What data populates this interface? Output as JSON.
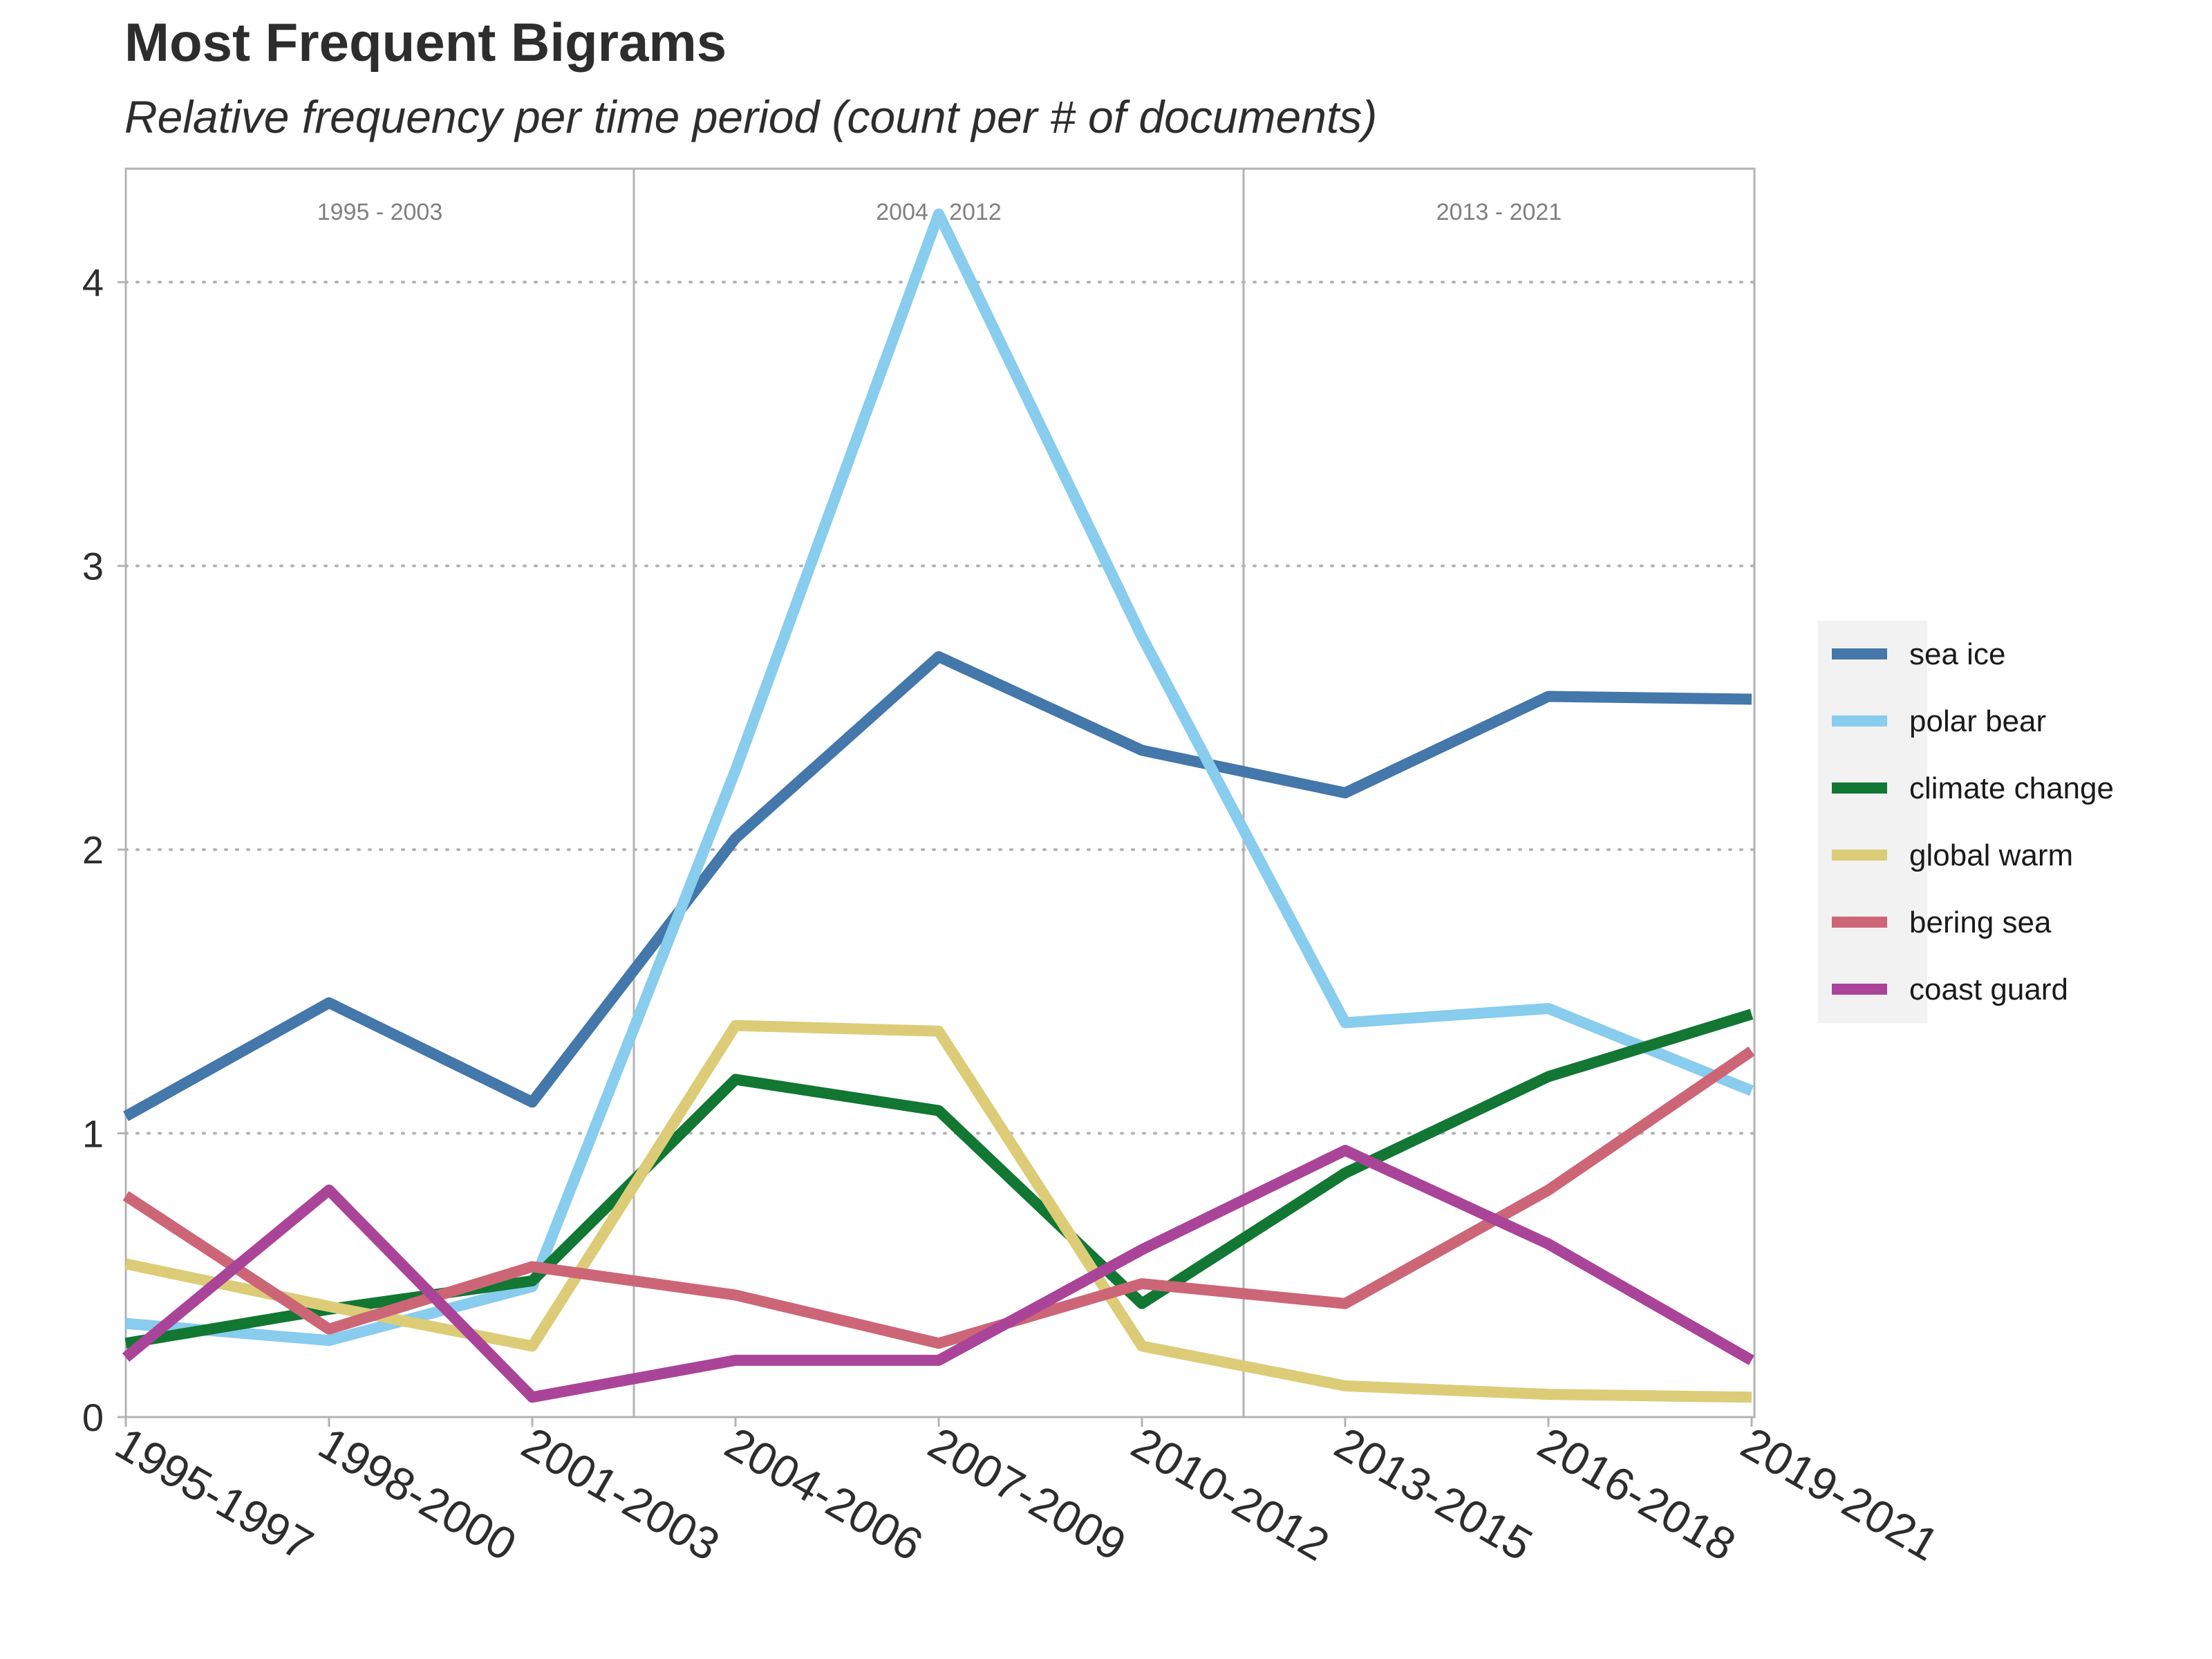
{
  "chart_data": {
    "type": "line",
    "title": "Most Frequent Bigrams",
    "subtitle": "Relative frequency per time period (count per # of documents)",
    "xlabel": "",
    "ylabel": "",
    "categories": [
      "1995-1997",
      "1998-2000",
      "2001-2003",
      "2004-2006",
      "2007-2009",
      "2010-2012",
      "2013-2015",
      "2016-2018",
      "2019-2021"
    ],
    "ylim": [
      0,
      4.4
    ],
    "yticks": [
      0,
      1,
      2,
      3,
      4
    ],
    "grid": "horizontal dotted",
    "legend_position": "right",
    "periods": [
      {
        "label": "1995 - 2003",
        "start": 0,
        "end": 2
      },
      {
        "label": "2004 - 2012",
        "start": 3,
        "end": 5
      },
      {
        "label": "2013 - 2021",
        "start": 6,
        "end": 8
      }
    ],
    "series": [
      {
        "name": "sea ice",
        "color": "#4477aa",
        "values": [
          1.06,
          1.46,
          1.11,
          2.04,
          2.68,
          2.35,
          2.2,
          2.54,
          2.53
        ]
      },
      {
        "name": "polar bear",
        "color": "#88ccee",
        "values": [
          0.33,
          0.27,
          0.46,
          2.28,
          4.24,
          2.75,
          1.39,
          1.44,
          1.15
        ]
      },
      {
        "name": "climate change",
        "color": "#117733",
        "values": [
          0.26,
          0.38,
          0.48,
          1.19,
          1.08,
          0.4,
          0.86,
          1.2,
          1.42
        ]
      },
      {
        "name": "global warm",
        "color": "#ddcc77",
        "values": [
          0.54,
          0.39,
          0.25,
          1.38,
          1.36,
          0.25,
          0.11,
          0.08,
          0.07
        ]
      },
      {
        "name": "bering sea",
        "color": "#cc6677",
        "values": [
          0.78,
          0.31,
          0.53,
          0.43,
          0.26,
          0.47,
          0.4,
          0.8,
          1.29
        ]
      },
      {
        "name": "coast guard",
        "color": "#aa4499",
        "values": [
          0.21,
          0.8,
          0.07,
          0.2,
          0.2,
          0.59,
          0.94,
          0.61,
          0.2
        ]
      }
    ]
  }
}
